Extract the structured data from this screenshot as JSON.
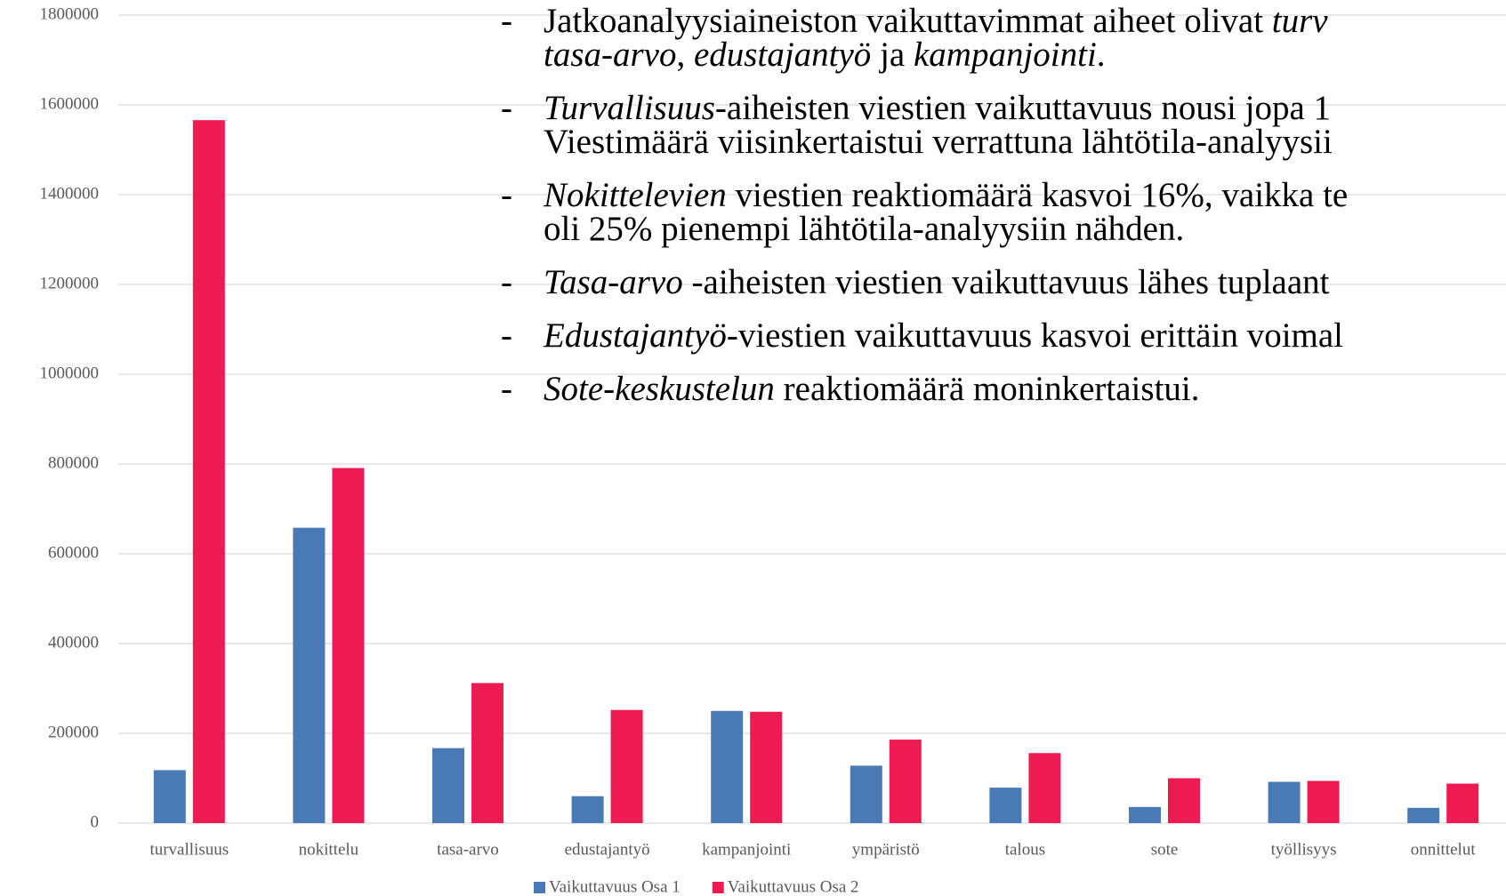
{
  "chart_data": {
    "type": "bar",
    "categories": [
      "turvallisuus",
      "nokittelu",
      "tasa-arvo",
      "edustajantyö",
      "kampanjointi",
      "ympäristö",
      "talous",
      "sote",
      "työllisyys",
      "onnittelut"
    ],
    "series": [
      {
        "name": "Vaikuttavuus Osa 1",
        "color": "#4a7ab5",
        "values": [
          118000,
          658000,
          167000,
          60000,
          250000,
          128000,
          79000,
          36000,
          92000,
          34000
        ]
      },
      {
        "name": "Vaikuttavuus Osa 2",
        "color": "#ee1a52",
        "values": [
          1566000,
          791000,
          312000,
          252000,
          248000,
          186000,
          156000,
          100000,
          94000,
          88000
        ]
      }
    ],
    "ylim": [
      0,
      1800000
    ],
    "yticks": [
      0,
      200000,
      400000,
      600000,
      800000,
      1000000,
      1200000,
      1400000,
      1600000,
      1800000
    ],
    "grid": true,
    "legend": "bottom",
    "annotations": [
      {
        "marker": "-",
        "lines": [
          [
            {
              "text": "Jatkoanalyysiaineiston vaikuttavimmat aiheet olivat ",
              "italic": false
            },
            {
              "text": "turv",
              "italic": true
            }
          ],
          [
            {
              "text": "tasa-arvo",
              "italic": true
            },
            {
              "text": ", ",
              "italic": false
            },
            {
              "text": "edustajantyö",
              "italic": true
            },
            {
              "text": " ja ",
              "italic": false
            },
            {
              "text": "kampanjointi",
              "italic": true
            },
            {
              "text": ".",
              "italic": false
            }
          ]
        ]
      },
      {
        "marker": "-",
        "lines": [
          [
            {
              "text": "Turvallisuus",
              "italic": true
            },
            {
              "text": "-aiheisten viestien vaikuttavuus nousi jopa 1",
              "italic": false
            }
          ],
          [
            {
              "text": "Viestimäärä viisinkertaistui verrattuna lähtötila-analyysii",
              "italic": false
            }
          ]
        ]
      },
      {
        "marker": "-",
        "lines": [
          [
            {
              "text": "Nokittelevien",
              "italic": true
            },
            {
              "text": " viestien reaktiomäärä kasvoi 16%, vaikka te",
              "italic": false
            }
          ],
          [
            {
              "text": "oli 25% pienempi lähtötila-analyysiin nähden.",
              "italic": false
            }
          ]
        ]
      },
      {
        "marker": "-",
        "lines": [
          [
            {
              "text": "Tasa-arvo",
              "italic": true
            },
            {
              "text": " -aiheisten viestien vaikuttavuus lähes tuplaant",
              "italic": false
            }
          ]
        ]
      },
      {
        "marker": "-",
        "lines": [
          [
            {
              "text": "Edustajantyö",
              "italic": true
            },
            {
              "text": "-viestien vaikuttavuus kasvoi erittäin voimal",
              "italic": false
            }
          ]
        ]
      },
      {
        "marker": "-",
        "lines": [
          [
            {
              "text": "Sote-keskustelun",
              "italic": true
            },
            {
              "text": " reaktiomäärä moninkertaistui.",
              "italic": false
            }
          ]
        ]
      }
    ]
  }
}
